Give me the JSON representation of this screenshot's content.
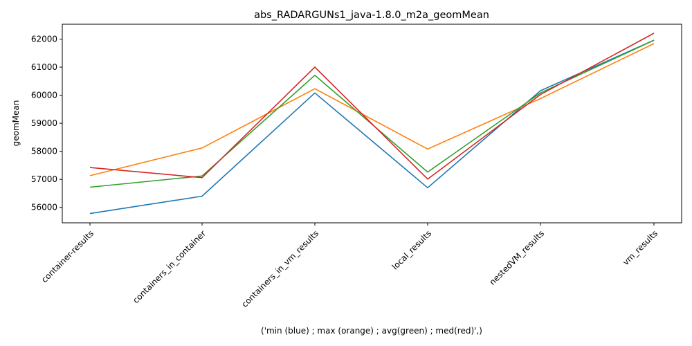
{
  "chart_data": {
    "type": "line",
    "title": "abs_RADARGUNs1_java-1.8.0_m2a_geomMean",
    "xlabel": "('min (blue) ; max (orange) ; avg(green) ; med(red)',)",
    "ylabel": "geomMean",
    "categories": [
      "container-results",
      "containers_in_container",
      "containers_in_vm_results",
      "local_results",
      "nestedVM_results",
      "vm_results"
    ],
    "ylim": [
      55450,
      62530
    ],
    "yticks": [
      56000,
      57000,
      58000,
      59000,
      60000,
      61000,
      62000
    ],
    "grid": false,
    "series": [
      {
        "color": "#1f77b4",
        "values": [
          55780,
          56400,
          60080,
          56700,
          60160,
          61960
        ]
      },
      {
        "color": "#ff7f0e",
        "values": [
          57130,
          58120,
          60230,
          58080,
          59880,
          61840
        ]
      },
      {
        "color": "#2ca02c",
        "values": [
          56720,
          57120,
          60710,
          57260,
          60080,
          61960
        ]
      },
      {
        "color": "#d62728",
        "values": [
          57420,
          57060,
          61000,
          57010,
          60020,
          62210
        ]
      }
    ]
  }
}
